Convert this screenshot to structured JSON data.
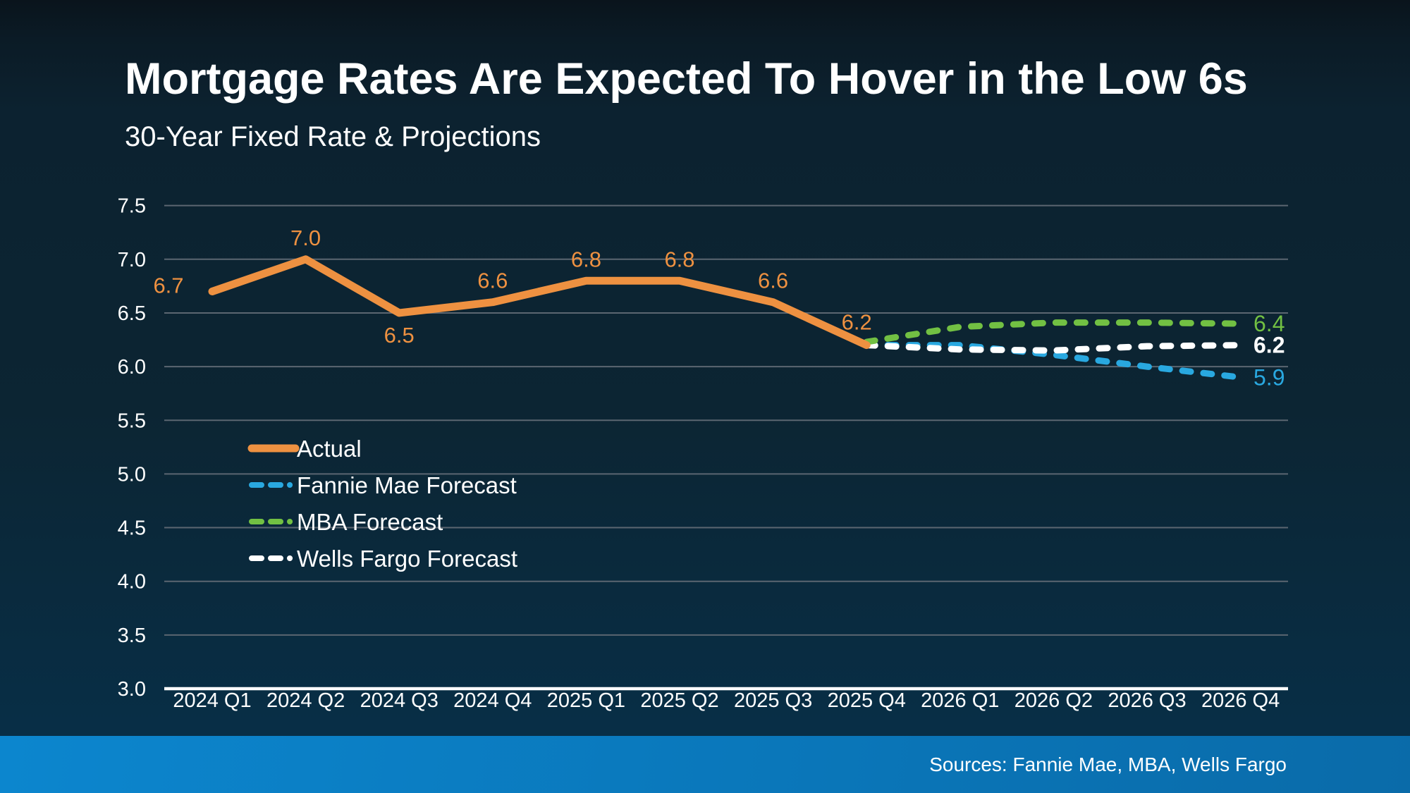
{
  "page": {
    "title": "Mortgage Rates Are Expected To Hover in the Low 6s",
    "subtitle": "30-Year Fixed Rate & Projections"
  },
  "footer": {
    "sources": "Sources: Fannie Mae, MBA, Wells Fargo"
  },
  "colors": {
    "actual": "#EE9141",
    "fannie_mae": "#29A8E0",
    "mba": "#72C043",
    "wells_fargo": "#FFFFFF",
    "gridline": "#5b6671",
    "axis_line": "#FFFFFF",
    "text": "#FFFFFF",
    "footer_bar_left": "#0C86CE",
    "footer_bar_right": "#0A6BA9",
    "background_top": "#0A141C",
    "background_bottom": "#07304A"
  },
  "chart_data": {
    "type": "line",
    "title": "30-Year Fixed Rate & Projections",
    "xlabel": "",
    "ylabel": "",
    "ylim": [
      3.0,
      7.5
    ],
    "y_ticks": [
      "7.5",
      "7.0",
      "6.5",
      "6.0",
      "5.5",
      "5.0",
      "4.5",
      "4.0",
      "3.5",
      "3.0"
    ],
    "grid": true,
    "legend_position": "inside-left",
    "categories": [
      "2024 Q1",
      "2024 Q2",
      "2024 Q3",
      "2024 Q4",
      "2025 Q1",
      "2025 Q2",
      "2025 Q3",
      "2025 Q4",
      "2026 Q1",
      "2026 Q2",
      "2026 Q3",
      "2026 Q4"
    ],
    "series": [
      {
        "name": "Actual",
        "style": "solid",
        "color": "#EE9141",
        "start_index": 0,
        "values": [
          6.7,
          7.0,
          6.5,
          6.6,
          6.8,
          6.8,
          6.6,
          6.2
        ],
        "point_labels": [
          {
            "text": "6.7",
            "pos": "left"
          },
          {
            "text": "7.0",
            "pos": "above"
          },
          {
            "text": "6.5",
            "pos": "below"
          },
          {
            "text": "6.6",
            "pos": "above"
          },
          {
            "text": "6.8",
            "pos": "above"
          },
          {
            "text": "6.8",
            "pos": "above"
          },
          {
            "text": "6.6",
            "pos": "above"
          },
          {
            "text": "6.2",
            "pos": "above-left"
          }
        ]
      },
      {
        "name": "Fannie Mae Forecast",
        "style": "dashed",
        "color": "#29A8E0",
        "start_index": 7,
        "values": [
          6.2,
          6.2,
          6.11,
          6.0,
          5.9
        ],
        "end_label": "5.9",
        "end_label_bold": false
      },
      {
        "name": "Wells Fargo Forecast",
        "style": "dashed",
        "color": "#FFFFFF",
        "start_index": 7,
        "values": [
          6.2,
          6.16,
          6.15,
          6.19,
          6.2
        ],
        "end_label": "6.2",
        "end_label_bold": true
      },
      {
        "name": "MBA Forecast",
        "style": "dashed",
        "color": "#72C043",
        "start_index": 7,
        "values": [
          6.23,
          6.37,
          6.41,
          6.41,
          6.4
        ],
        "end_label": "6.4",
        "end_label_bold": false
      }
    ]
  },
  "legend": {
    "items": [
      {
        "label": "Actual",
        "color": "#EE9141",
        "style": "solid"
      },
      {
        "label": "Fannie Mae Forecast",
        "color": "#29A8E0",
        "style": "dashed"
      },
      {
        "label": "MBA Forecast",
        "color": "#72C043",
        "style": "dashed"
      },
      {
        "label": "Wells Fargo Forecast",
        "color": "#FFFFFF",
        "style": "dashed"
      }
    ]
  }
}
